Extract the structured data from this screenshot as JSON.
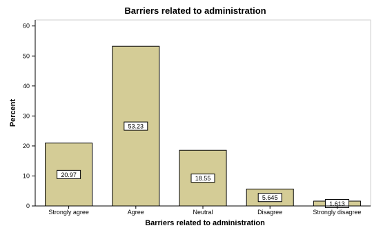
{
  "chart_data": {
    "type": "bar",
    "title": "Barriers related to administration",
    "xlabel": "Barriers related to administration",
    "ylabel": "Percent",
    "categories": [
      "Strongly agree",
      "Agree",
      "Neutral",
      "Disagree",
      "Strongly disagree"
    ],
    "values": [
      20.97,
      53.23,
      18.55,
      5.645,
      1.613
    ],
    "data_labels": [
      "20.97",
      "53.23",
      "18.55",
      "5.645",
      "1.613"
    ],
    "ylim": [
      0,
      62
    ],
    "yticks": [
      0,
      10,
      20,
      30,
      40,
      50,
      60
    ],
    "grid": false,
    "legend": "none",
    "bar_color": "#d4cc96",
    "bar_edge_color": "#000000"
  }
}
